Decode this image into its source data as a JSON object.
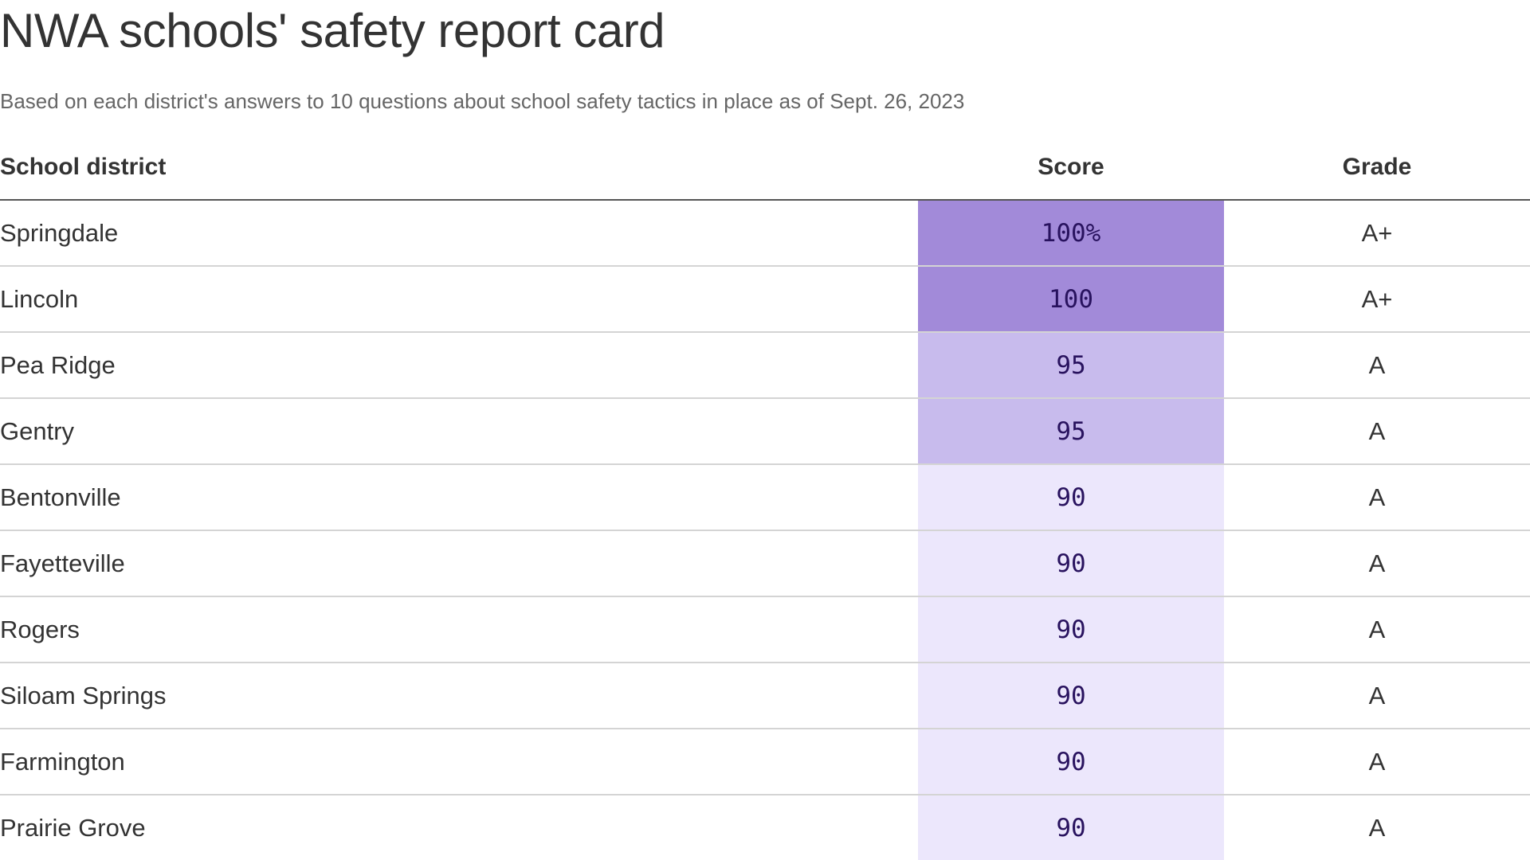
{
  "title": "NWA schools' safety report card",
  "subtitle": "Based on each district's answers to 10 questions about school safety tactics in place as of Sept. 26, 2023",
  "columns": {
    "district": "School district",
    "score": "Score",
    "grade": "Grade"
  },
  "colors": {
    "score_scale": {
      "100": "#a28ad9",
      "95": "#c8bbed",
      "90": "#ece7fc"
    },
    "score_text": "#28125e",
    "header_rule": "#555555",
    "row_rule": "#d4d4d4"
  },
  "chart_data": {
    "type": "table",
    "rows": [
      {
        "district": "Springdale",
        "score": 100,
        "score_label": "100%",
        "grade": "A+"
      },
      {
        "district": "Lincoln",
        "score": 100,
        "score_label": "100",
        "grade": "A+"
      },
      {
        "district": "Pea Ridge",
        "score": 95,
        "score_label": "95",
        "grade": "A"
      },
      {
        "district": "Gentry",
        "score": 95,
        "score_label": "95",
        "grade": "A"
      },
      {
        "district": "Bentonville",
        "score": 90,
        "score_label": "90",
        "grade": "A"
      },
      {
        "district": "Fayetteville",
        "score": 90,
        "score_label": "90",
        "grade": "A"
      },
      {
        "district": "Rogers",
        "score": 90,
        "score_label": "90",
        "grade": "A"
      },
      {
        "district": "Siloam Springs",
        "score": 90,
        "score_label": "90",
        "grade": "A"
      },
      {
        "district": "Farmington",
        "score": 90,
        "score_label": "90",
        "grade": "A"
      },
      {
        "district": "Prairie Grove",
        "score": 90,
        "score_label": "90",
        "grade": "A"
      }
    ]
  }
}
